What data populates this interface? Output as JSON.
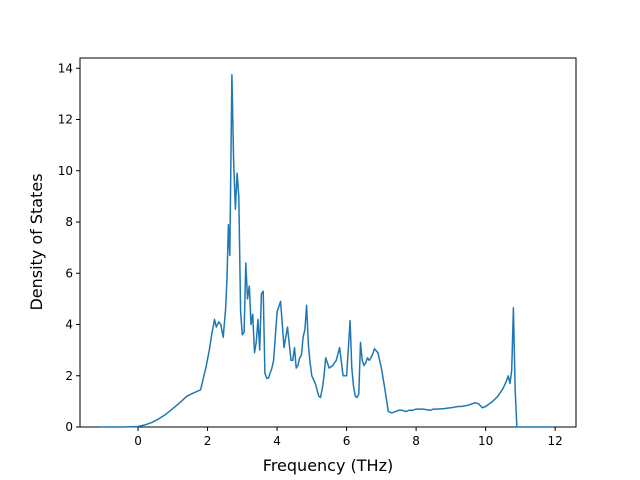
{
  "chart_data": {
    "type": "line",
    "title": "",
    "xlabel": "Frequency (THz)",
    "ylabel": "Density of States",
    "xlim": [
      -1.67,
      12.6
    ],
    "ylim": [
      0,
      14.4
    ],
    "xticks": [
      0,
      2,
      4,
      6,
      8,
      10,
      12
    ],
    "yticks": [
      0,
      2,
      4,
      6,
      8,
      10,
      12,
      14
    ],
    "grid": false,
    "legend": "none",
    "series": [
      {
        "color": "#1f77b4",
        "x": [
          -1.12,
          -0.8,
          -0.4,
          0.0,
          0.2,
          0.4,
          0.6,
          0.8,
          1.0,
          1.2,
          1.4,
          1.55,
          1.8,
          1.95,
          2.05,
          2.12,
          2.2,
          2.25,
          2.32,
          2.38,
          2.45,
          2.52,
          2.56,
          2.6,
          2.64,
          2.7,
          2.75,
          2.8,
          2.85,
          2.9,
          2.95,
          3.0,
          3.05,
          3.1,
          3.15,
          3.2,
          3.25,
          3.3,
          3.35,
          3.4,
          3.45,
          3.5,
          3.55,
          3.6,
          3.65,
          3.7,
          3.75,
          3.8,
          3.85,
          3.9,
          4.0,
          4.1,
          4.2,
          4.3,
          4.4,
          4.45,
          4.5,
          4.55,
          4.6,
          4.65,
          4.7,
          4.75,
          4.8,
          4.85,
          4.9,
          4.95,
          5.0,
          5.1,
          5.2,
          5.25,
          5.3,
          5.35,
          5.4,
          5.5,
          5.6,
          5.65,
          5.7,
          5.8,
          5.9,
          6.0,
          6.1,
          6.15,
          6.2,
          6.25,
          6.3,
          6.35,
          6.4,
          6.45,
          6.5,
          6.55,
          6.6,
          6.65,
          6.7,
          6.75,
          6.8,
          6.9,
          7.0,
          7.1,
          7.2,
          7.3,
          7.4,
          7.5,
          7.6,
          7.7,
          7.8,
          7.9,
          8.0,
          8.2,
          8.4,
          8.5,
          8.6,
          8.8,
          9.0,
          9.2,
          9.3,
          9.5,
          9.6,
          9.7,
          9.8,
          9.9,
          10.0,
          10.2,
          10.35,
          10.5,
          10.6,
          10.65,
          10.7,
          10.75,
          10.8,
          10.85,
          10.9,
          11.0,
          11.5,
          11.95
        ],
        "y": [
          0.0,
          0.0,
          0.0,
          0.02,
          0.08,
          0.18,
          0.32,
          0.5,
          0.72,
          0.95,
          1.2,
          1.3,
          1.45,
          2.3,
          3.0,
          3.6,
          4.2,
          3.9,
          4.1,
          4.0,
          3.5,
          4.6,
          5.8,
          7.9,
          6.7,
          13.75,
          10.4,
          8.5,
          9.9,
          9.0,
          4.5,
          3.6,
          3.7,
          6.4,
          5.0,
          5.5,
          4.0,
          4.4,
          2.9,
          3.3,
          4.2,
          3.0,
          5.2,
          5.3,
          2.1,
          1.9,
          1.9,
          2.1,
          2.3,
          2.6,
          4.5,
          4.9,
          3.1,
          3.9,
          2.6,
          2.6,
          3.1,
          2.3,
          2.4,
          2.7,
          2.8,
          3.5,
          3.8,
          4.75,
          3.2,
          2.5,
          2.0,
          1.7,
          1.2,
          1.15,
          1.5,
          2.0,
          2.7,
          2.3,
          2.4,
          2.5,
          2.6,
          3.1,
          2.0,
          2.0,
          4.15,
          2.3,
          1.6,
          1.2,
          1.15,
          1.3,
          3.3,
          2.6,
          2.4,
          2.5,
          2.7,
          2.6,
          2.7,
          2.85,
          3.05,
          2.9,
          2.3,
          1.5,
          0.6,
          0.55,
          0.6,
          0.65,
          0.65,
          0.6,
          0.65,
          0.65,
          0.7,
          0.7,
          0.65,
          0.7,
          0.7,
          0.72,
          0.75,
          0.8,
          0.8,
          0.85,
          0.9,
          0.95,
          0.9,
          0.75,
          0.8,
          1.0,
          1.2,
          1.5,
          1.8,
          2.0,
          1.7,
          2.2,
          4.65,
          1.4,
          0.0,
          0.0,
          0.0,
          0.0
        ]
      }
    ]
  }
}
